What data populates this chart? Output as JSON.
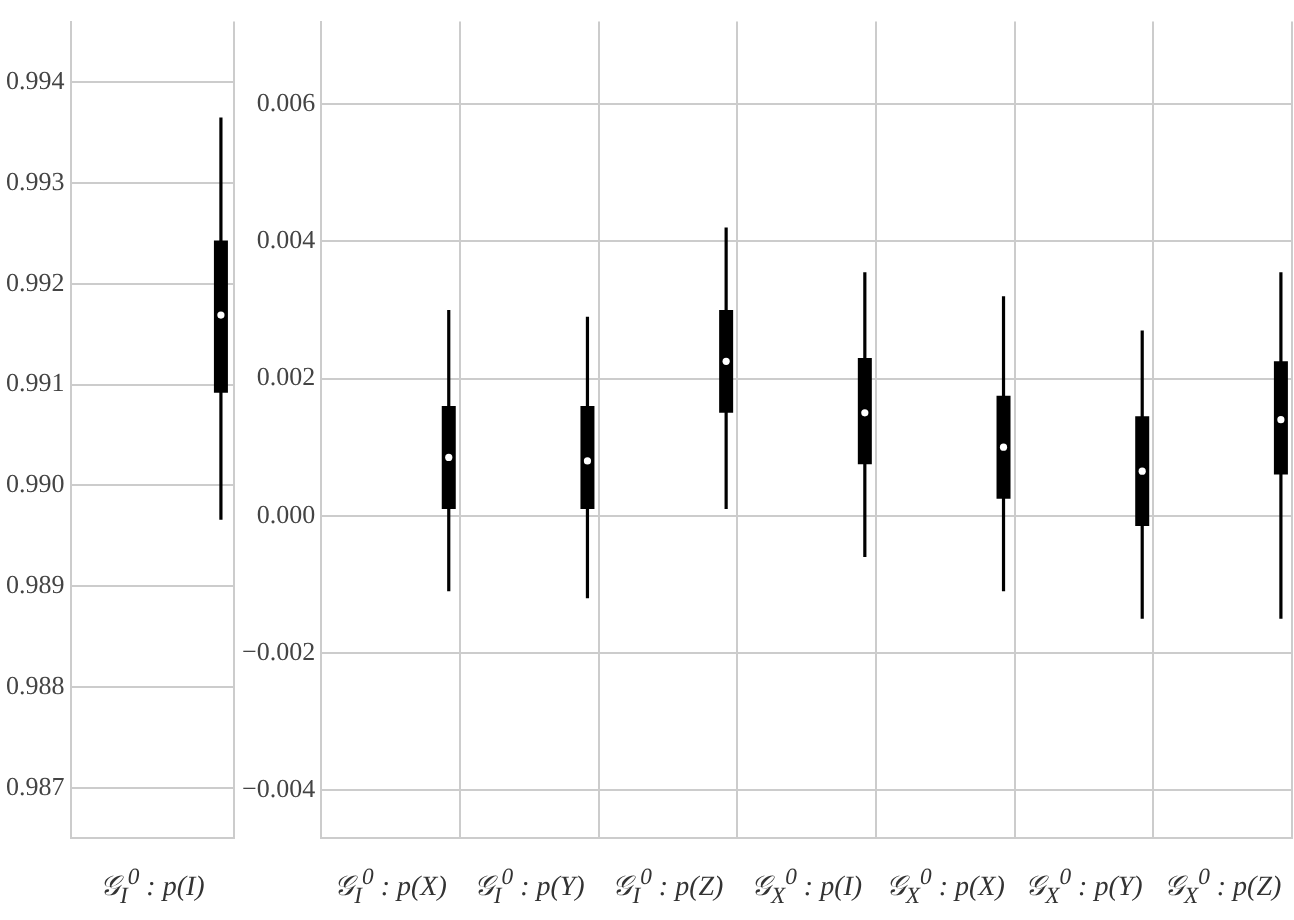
{
  "chart_data": [
    {
      "type": "box",
      "categories": [
        "𝒢$_{I}$$^{0}$ : p(I)"
      ],
      "color": "#000000",
      "boxes": [
        {
          "low": 0.98966,
          "q1": 0.99092,
          "median": 0.99169,
          "q3": 0.99243,
          "high": 0.99365
        }
      ],
      "ylim": [
        0.9865,
        0.9946
      ],
      "yticks": [
        0.987,
        0.988,
        0.989,
        {
          "value": 0.99,
          "label": "0.990"
        },
        0.991,
        0.992,
        0.993,
        0.994
      ],
      "grid": true
    },
    {
      "type": "box",
      "categories": [
        "𝒢$_{I}$$^{0}$ : p(X)",
        "𝒢$_{I}$$^{0}$ : p(Y)",
        "𝒢$_{I}$$^{0}$ : p(Z)",
        "𝒢$_{X}$$^{0}$ : p(I)",
        "𝒢$_{X}$$^{0}$ : p(X)",
        "𝒢$_{X}$$^{0}$ : p(Y)",
        "𝒢$_{X}$$^{0}$ : p(Z)"
      ],
      "color": "#000000",
      "boxes": [
        {
          "low": -0.0011,
          "q1": 0.0001,
          "median": 0.00085,
          "q3": 0.0016,
          "high": 0.003
        },
        {
          "low": -0.0012,
          "q1": 0.0001,
          "median": 0.0008,
          "q3": 0.0016,
          "high": 0.0029
        },
        {
          "low": 0.0001,
          "q1": 0.0015,
          "median": 0.00225,
          "q3": 0.003,
          "high": 0.0042
        },
        {
          "low": -0.0006,
          "q1": 0.00075,
          "median": 0.0015,
          "q3": 0.0023,
          "high": 0.00355
        },
        {
          "low": -0.0011,
          "q1": 0.00025,
          "median": 0.001,
          "q3": 0.00175,
          "high": 0.0032
        },
        {
          "low": -0.0015,
          "q1": -0.00015,
          "median": 0.00065,
          "q3": 0.00145,
          "high": 0.0027
        },
        {
          "low": -0.0015,
          "q1": 0.0006,
          "median": 0.0014,
          "q3": 0.00225,
          "high": 0.00355
        }
      ],
      "ylim": [
        -0.0047,
        0.0072
      ],
      "yticks": [
        {
          "value": -0.004,
          "label": "−0.004"
        },
        {
          "value": -0.002,
          "label": "−0.002"
        },
        {
          "value": 0,
          "label": "0.000"
        },
        0.002,
        0.004,
        0.006
      ],
      "grid": true
    }
  ]
}
